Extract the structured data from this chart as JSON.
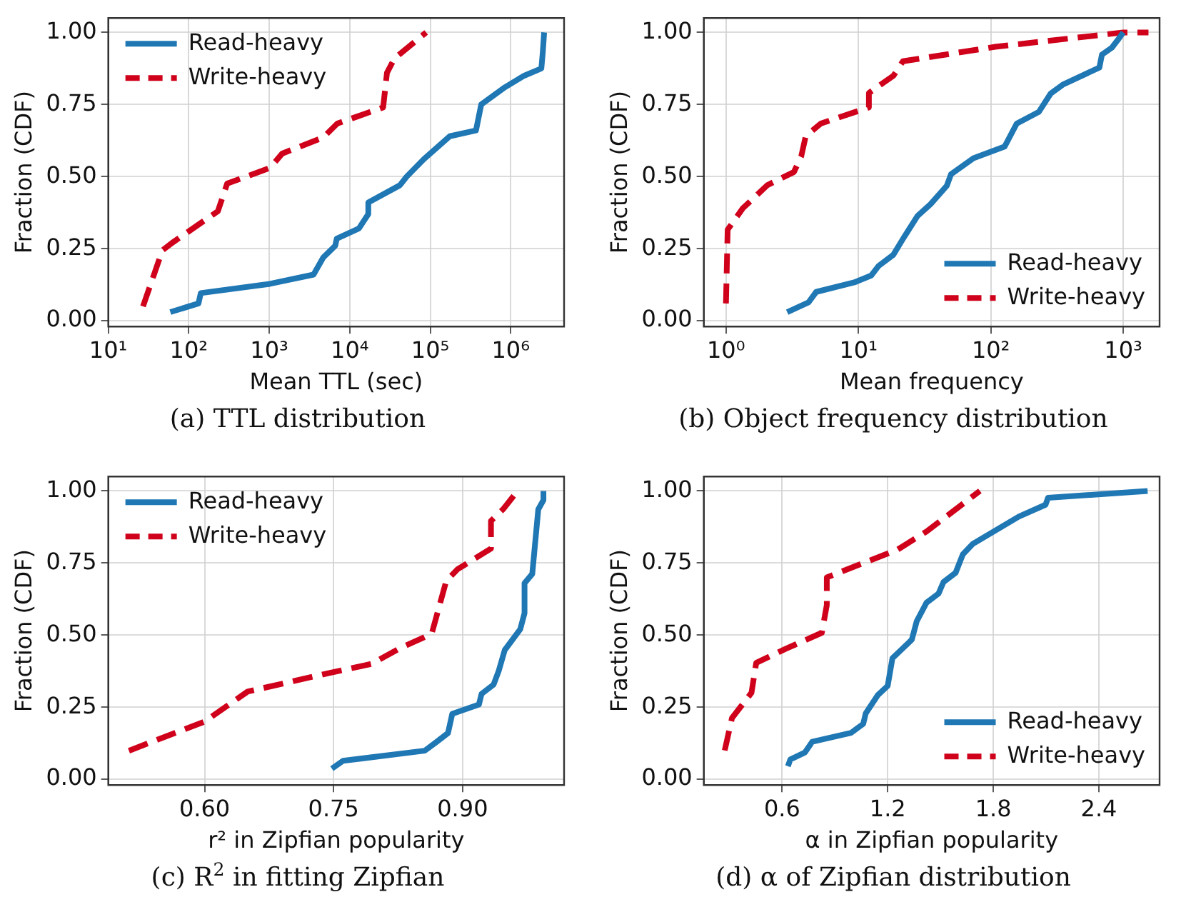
{
  "chart_data": [
    {
      "type": "line",
      "title": "(a) TTL distribution",
      "xlabel": "Mean TTL (sec)",
      "ylabel": "Fraction (CDF)",
      "log": "x",
      "grid": true,
      "legend": "top left",
      "marker": "none",
      "xlim": [
        10,
        4600000
      ],
      "xticks": [
        {
          "value": 10,
          "label": "10¹"
        },
        {
          "value": 100,
          "label": "10²"
        },
        {
          "value": 1000,
          "label": "10³"
        },
        {
          "value": 10000,
          "label": "10⁴"
        },
        {
          "value": 100000,
          "label": "10⁵"
        },
        {
          "value": 1000000,
          "label": "10⁶"
        }
      ],
      "ylim": [
        -0.02,
        1.05
      ],
      "yticks": [
        {
          "value": 0,
          "label": "0.00"
        },
        {
          "value": 0.25,
          "label": "0.25"
        },
        {
          "value": 0.5,
          "label": "0.50"
        },
        {
          "value": 0.75,
          "label": "0.75"
        },
        {
          "value": 1,
          "label": "1.00"
        }
      ],
      "series": [
        {
          "name": "Read-heavy",
          "color": "#1f77b4",
          "line_style": "solid",
          "x": [
            59,
            132,
            141,
            1020,
            3550,
            4700,
            6600,
            6900,
            13000,
            17000,
            17000,
            42000,
            51000,
            83000,
            175000,
            370000,
            430000,
            850000,
            1470000,
            2400000,
            2500000,
            2600000
          ],
          "values": [
            0.03,
            0.06,
            0.096,
            0.128,
            0.16,
            0.22,
            0.26,
            0.285,
            0.32,
            0.37,
            0.41,
            0.47,
            0.5,
            0.56,
            0.64,
            0.66,
            0.75,
            0.81,
            0.85,
            0.875,
            0.93,
            1.0
          ]
        },
        {
          "name": "Write-heavy",
          "color": "#d0021b",
          "line_style": "dashed",
          "x": [
            27,
            47,
            62,
            230,
            300,
            1020,
            1450,
            4700,
            7000,
            26000,
            29000,
            36000,
            89000
          ],
          "values": [
            0.05,
            0.244,
            0.27,
            0.38,
            0.476,
            0.53,
            0.58,
            0.636,
            0.684,
            0.74,
            0.86,
            0.91,
            1.0
          ]
        }
      ]
    },
    {
      "type": "line",
      "title": "(b) Object frequency distribution",
      "xlabel": "Mean frequency",
      "ylabel": "Fraction (CDF)",
      "log": "x",
      "grid": true,
      "legend": "bottom right",
      "marker": "none",
      "xlim": [
        0.68,
        1880
      ],
      "xticks": [
        {
          "value": 1,
          "label": "10⁰"
        },
        {
          "value": 10,
          "label": "10¹"
        },
        {
          "value": 100,
          "label": "10²"
        },
        {
          "value": 1000,
          "label": "10³"
        }
      ],
      "ylim": [
        -0.02,
        1.05
      ],
      "yticks": [
        {
          "value": 0,
          "label": "0.00"
        },
        {
          "value": 0.25,
          "label": "0.25"
        },
        {
          "value": 0.5,
          "label": "0.50"
        },
        {
          "value": 0.75,
          "label": "0.75"
        },
        {
          "value": 1,
          "label": "1.00"
        }
      ],
      "series": [
        {
          "name": "Read-heavy",
          "color": "#1f77b4",
          "line_style": "solid",
          "x": [
            2.9,
            4.2,
            4.8,
            9.3,
            12.5,
            14.2,
            18.3,
            21.7,
            28,
            35,
            46.5,
            50,
            74,
            127,
            157,
            230,
            283,
            353,
            660,
            690,
            820,
            930,
            1000
          ],
          "values": [
            0.03,
            0.064,
            0.1,
            0.133,
            0.157,
            0.19,
            0.228,
            0.284,
            0.364,
            0.404,
            0.468,
            0.508,
            0.564,
            0.604,
            0.684,
            0.724,
            0.788,
            0.82,
            0.878,
            0.923,
            0.947,
            0.98,
            1.0
          ]
        },
        {
          "name": "Write-heavy",
          "color": "#d0021b",
          "line_style": "dashed",
          "x": [
            1.0,
            1.03,
            1.34,
            2.05,
            3.26,
            3.7,
            4.0,
            5.2,
            12,
            12,
            18.4,
            21.7,
            108,
            1000,
            1550
          ],
          "values": [
            0.06,
            0.316,
            0.39,
            0.47,
            0.516,
            0.57,
            0.64,
            0.684,
            0.74,
            0.79,
            0.85,
            0.9,
            0.95,
            1.0,
            1.0
          ]
        }
      ]
    },
    {
      "type": "line",
      "title": "(c) R$^{2}$ in fitting Zipfian",
      "xlabel": "r² in Zipfian popularity",
      "ylabel": "Fraction (CDF)",
      "grid": true,
      "legend": "top left",
      "marker": "none",
      "xlim": [
        0.488,
        1.018
      ],
      "xticks": [
        {
          "value": 0.6,
          "label": "0.60"
        },
        {
          "value": 0.75,
          "label": "0.75"
        },
        {
          "value": 0.9,
          "label": "0.90"
        }
      ],
      "ylim": [
        -0.02,
        1.05
      ],
      "yticks": [
        {
          "value": 0,
          "label": "0.00"
        },
        {
          "value": 0.25,
          "label": "0.25"
        },
        {
          "value": 0.5,
          "label": "0.50"
        },
        {
          "value": 0.75,
          "label": "0.75"
        },
        {
          "value": 1,
          "label": "1.00"
        }
      ],
      "series": [
        {
          "name": "Read-heavy",
          "color": "#1f77b4",
          "line_style": "solid",
          "x": [
            0.748,
            0.761,
            0.856,
            0.869,
            0.883,
            0.888,
            0.919,
            0.922,
            0.936,
            0.942,
            0.949,
            0.967,
            0.972,
            0.972,
            0.981,
            0.988,
            0.994,
            0.994
          ],
          "values": [
            0.037,
            0.064,
            0.099,
            0.128,
            0.16,
            0.227,
            0.259,
            0.296,
            0.328,
            0.376,
            0.448,
            0.52,
            0.576,
            0.68,
            0.712,
            0.936,
            0.968,
            1.0
          ]
        },
        {
          "name": "Write-heavy",
          "color": "#d0021b",
          "line_style": "dashed",
          "x": [
            0.512,
            0.6,
            0.65,
            0.744,
            0.794,
            0.828,
            0.864,
            0.881,
            0.894,
            0.933,
            0.933,
            0.947,
            0.964
          ],
          "values": [
            0.099,
            0.2,
            0.304,
            0.368,
            0.4,
            0.456,
            0.504,
            0.688,
            0.728,
            0.8,
            0.896,
            0.936,
            1.0
          ]
        }
      ]
    },
    {
      "type": "line",
      "title": "(d) α of Zipfian distribution",
      "xlabel": "α in Zipfian popularity",
      "ylabel": "Fraction (CDF)",
      "grid": true,
      "legend": "bottom right",
      "marker": "none",
      "xlim": [
        0.155,
        2.745
      ],
      "xticks": [
        0.6,
        1.2,
        1.8,
        2.4
      ],
      "ylim": [
        -0.02,
        1.05
      ],
      "yticks": [
        {
          "value": 0,
          "label": "0.00"
        },
        {
          "value": 0.25,
          "label": "0.25"
        },
        {
          "value": 0.5,
          "label": "0.50"
        },
        {
          "value": 0.75,
          "label": "0.75"
        },
        {
          "value": 1,
          "label": "1.00"
        }
      ],
      "series": [
        {
          "name": "Read-heavy",
          "color": "#1f77b4",
          "line_style": "solid",
          "x": [
            0.633,
            0.647,
            0.73,
            0.771,
            0.992,
            1.061,
            1.075,
            1.144,
            1.2,
            1.227,
            1.337,
            1.365,
            1.42,
            1.489,
            1.517,
            1.586,
            1.627,
            1.683,
            1.945,
            2.097,
            2.111,
            2.677
          ],
          "values": [
            0.045,
            0.069,
            0.093,
            0.13,
            0.161,
            0.192,
            0.228,
            0.292,
            0.324,
            0.42,
            0.484,
            0.548,
            0.612,
            0.644,
            0.684,
            0.716,
            0.78,
            0.816,
            0.911,
            0.952,
            0.976,
            1.0
          ]
        },
        {
          "name": "Write-heavy",
          "color": "#d0021b",
          "line_style": "dashed",
          "x": [
            0.274,
            0.315,
            0.426,
            0.453,
            0.619,
            0.826,
            0.854,
            0.854,
            1.255,
            1.42,
            1.724
          ],
          "values": [
            0.1,
            0.212,
            0.3,
            0.404,
            0.452,
            0.508,
            0.604,
            0.7,
            0.796,
            0.859,
            1.0
          ]
        }
      ]
    }
  ]
}
